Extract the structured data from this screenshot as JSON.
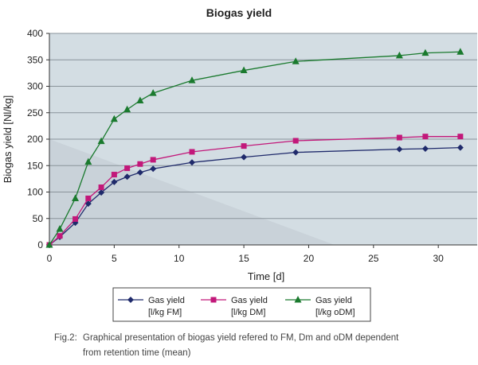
{
  "chart_data": {
    "type": "line",
    "title": "Biogas yield",
    "xlabel": "Time [d]",
    "ylabel": "Biogas yield [Nl/kg]",
    "xlim": [
      0,
      33
    ],
    "ylim": [
      0,
      400
    ],
    "xticks": [
      0,
      5,
      10,
      15,
      20,
      25,
      30
    ],
    "yticks": [
      0,
      50,
      100,
      150,
      200,
      250,
      300,
      350,
      400
    ],
    "grid": true,
    "legend_position": "bottom",
    "series": [
      {
        "name": "Gas yield [l/kg FM]",
        "legend_line1": "Gas yield",
        "legend_line2": "[l/kg FM]",
        "color": "#1f2a6b",
        "marker": "diamond",
        "x": [
          0,
          0.8,
          2,
          3,
          4,
          5,
          6,
          7,
          8,
          11,
          15,
          19,
          27,
          29,
          31.7
        ],
        "y": [
          0,
          15,
          42,
          78,
          99,
          119,
          129,
          137,
          144,
          156,
          166,
          175,
          181,
          182,
          184
        ]
      },
      {
        "name": "Gas yield [l/kg DM]",
        "legend_line1": "Gas yield",
        "legend_line2": "[l/kg DM]",
        "color": "#c2187a",
        "marker": "square",
        "x": [
          0,
          0.8,
          2,
          3,
          4,
          5,
          6,
          7,
          8,
          11,
          15,
          19,
          27,
          29,
          31.7
        ],
        "y": [
          0,
          17,
          49,
          88,
          109,
          133,
          145,
          153,
          161,
          176,
          187,
          197,
          203,
          205,
          205
        ]
      },
      {
        "name": "Gas yield [l/kg oDM]",
        "legend_line1": "Gas yield",
        "legend_line2": "[l/kg oDM]",
        "color": "#1a7a2e",
        "marker": "triangle",
        "x": [
          0,
          0.8,
          2,
          3,
          4,
          5,
          6,
          7,
          8,
          11,
          15,
          19,
          27,
          29,
          31.7
        ],
        "y": [
          0,
          30,
          88,
          157,
          196,
          238,
          256,
          273,
          287,
          311,
          330,
          347,
          358,
          363,
          365
        ]
      }
    ]
  },
  "caption": {
    "prefix": "Fig.2:",
    "line1": "Graphical presentation of biogas yield refered to FM, Dm and oDM dependent",
    "line2": "from retention time (mean)"
  }
}
